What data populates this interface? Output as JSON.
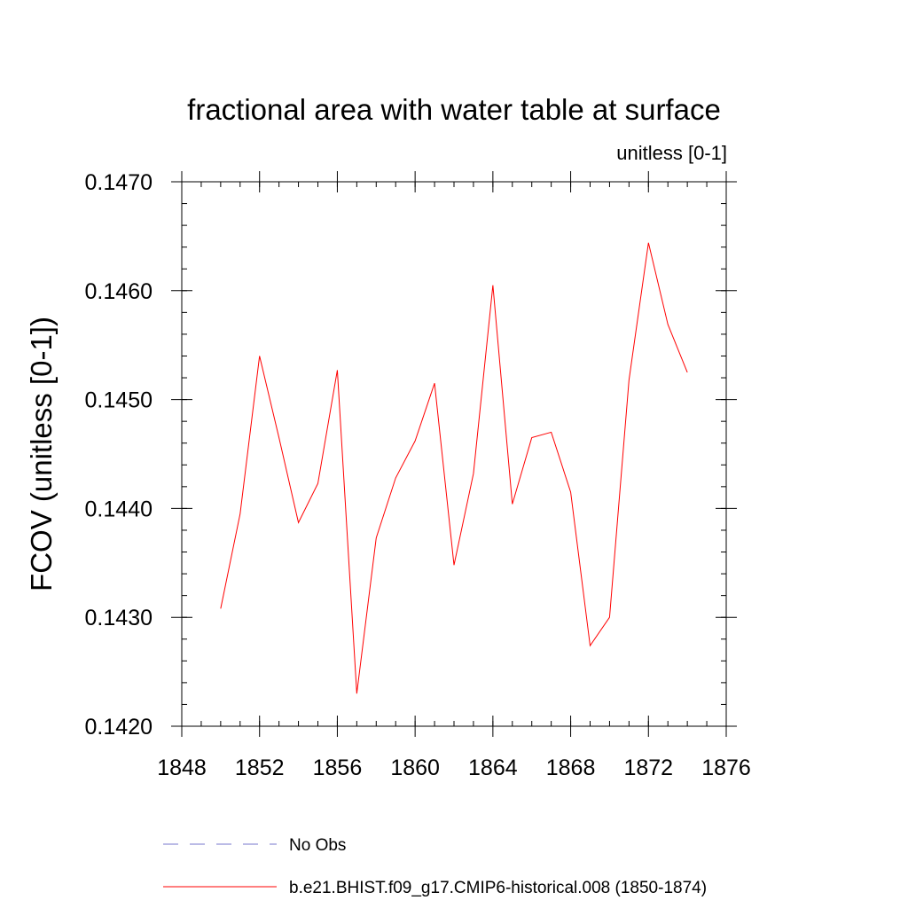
{
  "chart_data": {
    "type": "line",
    "title": "fractional area with water table at surface",
    "subtitle": "unitless [0-1]",
    "xlabel": "",
    "ylabel": "FCOV  (unitless [0-1])",
    "xlim": [
      1848,
      1876
    ],
    "ylim": [
      0.142,
      0.147
    ],
    "x_ticks": [
      1848,
      1852,
      1856,
      1860,
      1864,
      1868,
      1872,
      1876
    ],
    "x_minor_step": 1,
    "y_ticks": [
      0.142,
      0.143,
      0.144,
      0.145,
      0.146,
      0.147
    ],
    "y_tick_labels": [
      "0.1420",
      "0.1430",
      "0.1440",
      "0.1450",
      "0.1460",
      "0.1470"
    ],
    "y_minor_step": 0.0002,
    "grid": false,
    "legend_position": "bottom",
    "series": [
      {
        "name": "b.e21.BHIST.f09_g17.CMIP6-historical.008 (1850-1874)",
        "color": "#ff0000",
        "dash": "solid",
        "x": [
          1850,
          1851,
          1852,
          1853,
          1854,
          1855,
          1856,
          1857,
          1858,
          1859,
          1860,
          1861,
          1862,
          1863,
          1864,
          1865,
          1866,
          1867,
          1868,
          1869,
          1870,
          1871,
          1872,
          1873,
          1874
        ],
        "values": [
          0.14308,
          0.14395,
          0.1454,
          0.14465,
          0.14387,
          0.14423,
          0.14527,
          0.1423,
          0.14373,
          0.14428,
          0.14462,
          0.14515,
          0.14348,
          0.14432,
          0.14605,
          0.14404,
          0.14465,
          0.1447,
          0.14415,
          0.14274,
          0.143,
          0.14518,
          0.14644,
          0.14569,
          0.14525
        ]
      }
    ],
    "legend": [
      {
        "label": "No Obs",
        "color": "#7777cc",
        "dash": "dashed"
      },
      {
        "label": "b.e21.BHIST.f09_g17.CMIP6-historical.008 (1850-1874)",
        "color": "#ff0000",
        "dash": "solid"
      }
    ]
  }
}
